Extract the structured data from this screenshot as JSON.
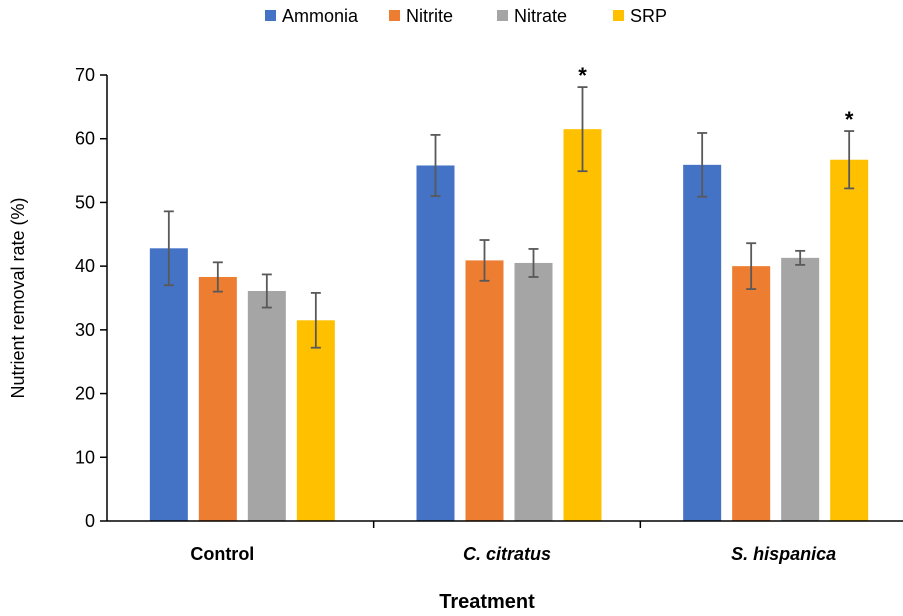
{
  "chart_data": {
    "type": "bar",
    "categories": [
      "Control",
      "C. citratus",
      "S. hispanica"
    ],
    "category_italic": [
      false,
      true,
      true
    ],
    "xlabel": "Treatment",
    "ylabel": "Nutrient removal rate (%)",
    "ylim": [
      0,
      70
    ],
    "yticks": [
      0,
      10,
      20,
      30,
      40,
      50,
      60,
      70
    ],
    "grid": false,
    "legend_position": "top",
    "series": [
      {
        "name": "Ammonia",
        "color": "#4472C4",
        "values": [
          42.8,
          55.8,
          55.9
        ],
        "errors": [
          5.8,
          4.8,
          5.0
        ]
      },
      {
        "name": "Nitrite",
        "color": "#ED7D31",
        "values": [
          38.3,
          40.9,
          40.0
        ],
        "errors": [
          2.3,
          3.2,
          3.6
        ]
      },
      {
        "name": "Nitrate",
        "color": "#A5A5A5",
        "values": [
          36.1,
          40.5,
          41.3
        ],
        "errors": [
          2.6,
          2.2,
          1.1
        ]
      },
      {
        "name": "SRP",
        "color": "#FFC000",
        "values": [
          31.5,
          61.5,
          56.7
        ],
        "errors": [
          4.3,
          6.6,
          4.5
        ]
      }
    ],
    "annotations": [
      {
        "text": "*",
        "category_index": 1,
        "series_index": 3
      },
      {
        "text": "*",
        "category_index": 2,
        "series_index": 3
      }
    ]
  }
}
